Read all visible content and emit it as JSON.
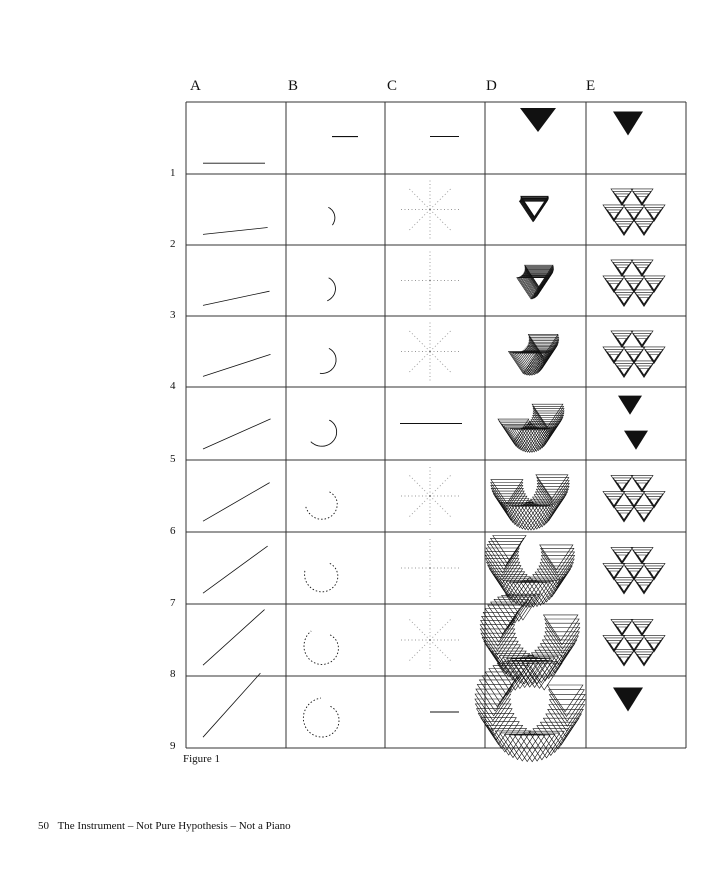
{
  "figure": {
    "columns": [
      "A",
      "B",
      "C",
      "D",
      "E"
    ],
    "rows": [
      "1",
      "2",
      "3",
      "4",
      "5",
      "6",
      "7",
      "8",
      "9"
    ],
    "caption": "Figure 1"
  },
  "footer": {
    "page_number": "50",
    "text": "The Instrument – Not Pure Hypothesis – Not a Piano"
  },
  "colors": {
    "ink": "#111111",
    "grid_line": "#333333"
  }
}
